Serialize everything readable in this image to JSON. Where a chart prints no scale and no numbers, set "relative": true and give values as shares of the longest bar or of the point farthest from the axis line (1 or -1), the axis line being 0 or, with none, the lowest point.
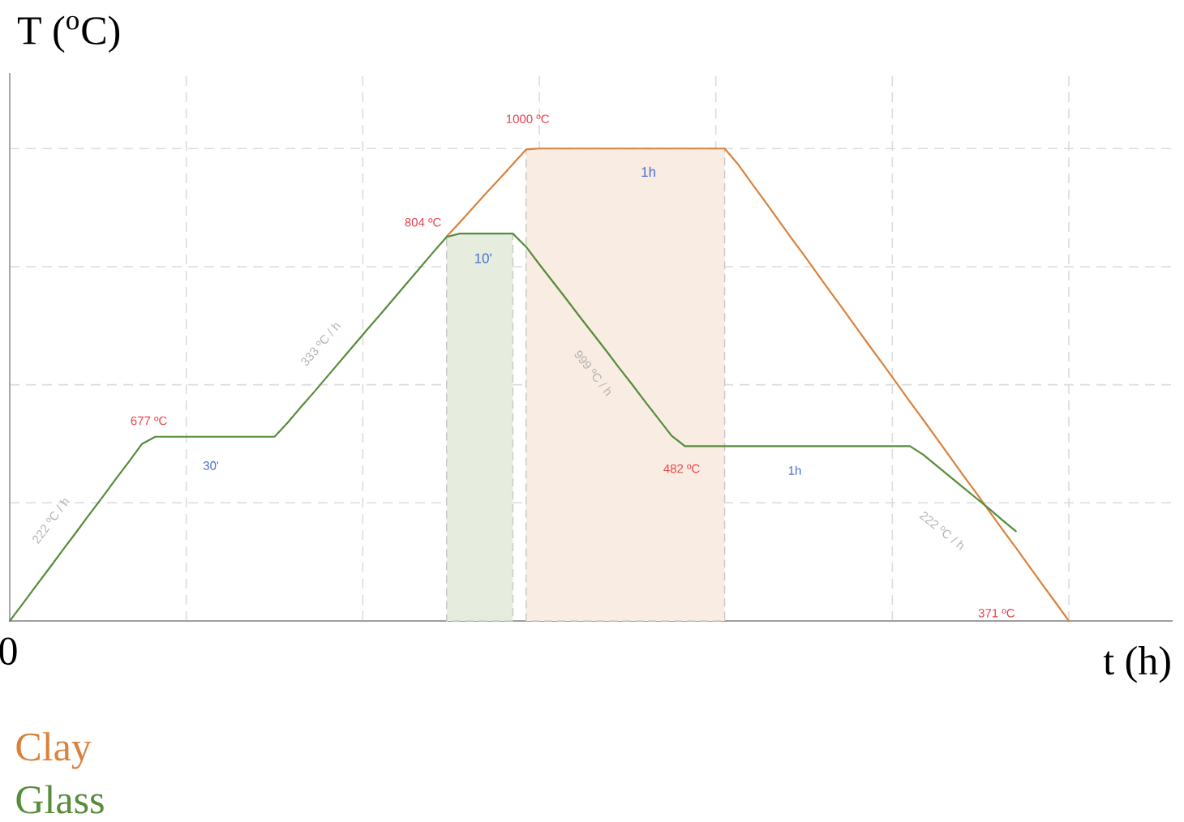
{
  "chart_data": {
    "type": "line",
    "relative": true,
    "ylabel": "T ($^{o}$C)",
    "xlabel": "t (h)",
    "grid": true,
    "categories": [
      null,
      null,
      null,
      null,
      null,
      null,
      null,
      null,
      null,
      null,
      null,
      null,
      null,
      null,
      null,
      null,
      null,
      null,
      null,
      null,
      null,
      null,
      null,
      null,
      null,
      null,
      null,
      null,
      null,
      null,
      null,
      null,
      null,
      null,
      null,
      null,
      null,
      null,
      null,
      null,
      null,
      null,
      null,
      null,
      null,
      null,
      null,
      null,
      null,
      null,
      null,
      null,
      null,
      null,
      null,
      null,
      null,
      null,
      null,
      null,
      null,
      null,
      null,
      null,
      null,
      null,
      null,
      null,
      null,
      null,
      null,
      null,
      null,
      null,
      null,
      null,
      null,
      null,
      null,
      null,
      null
    ],
    "series": [
      {
        "type": "area",
        "color": "#e6eddf",
        "values": [
          null,
          null,
          null,
          null,
          null,
          null,
          null,
          null,
          null,
          null,
          null,
          null,
          null,
          null,
          null,
          null,
          null,
          null,
          null,
          null,
          null,
          null,
          null,
          null,
          null,
          null,
          null,
          null,
          null,
          null,
          null,
          null,
          null,
          0.813,
          0.82,
          0.82,
          0.82,
          0.82,
          0.82,
          null,
          null,
          null,
          null,
          null,
          null,
          null,
          null,
          null,
          null,
          null,
          null,
          null,
          null,
          null,
          null,
          null,
          null,
          null,
          null,
          null,
          null,
          null,
          null,
          null,
          null,
          null,
          null,
          null,
          null,
          null,
          null,
          null,
          null,
          null,
          null,
          null,
          null,
          null,
          null,
          null,
          null
        ]
      },
      {
        "type": "area",
        "color": "#f9ece2",
        "values": [
          null,
          null,
          null,
          null,
          null,
          null,
          null,
          null,
          null,
          null,
          null,
          null,
          null,
          null,
          null,
          null,
          null,
          null,
          null,
          null,
          null,
          null,
          null,
          null,
          null,
          null,
          null,
          null,
          null,
          null,
          null,
          null,
          null,
          null,
          null,
          null,
          null,
          null,
          null,
          0.998,
          1,
          1,
          1,
          1,
          1,
          1,
          1,
          1,
          1,
          1,
          1,
          1,
          1,
          1,
          1,
          null,
          null,
          null,
          null,
          null,
          null,
          null,
          null,
          null,
          null,
          null,
          null,
          null,
          null,
          null,
          null,
          null,
          null,
          null,
          null,
          null,
          null,
          null,
          null,
          null,
          null
        ]
      },
      {
        "name": "Clay",
        "color": "#d9823c",
        "values": [
          null,
          null,
          null,
          null,
          null,
          null,
          null,
          null,
          null,
          null,
          null,
          null,
          null,
          null,
          null,
          null,
          null,
          null,
          null,
          null,
          null,
          null,
          null,
          null,
          null,
          null,
          null,
          null,
          null,
          null,
          null,
          null,
          null,
          0.814,
          0.844,
          0.875,
          0.906,
          0.936,
          0.967,
          0.998,
          1,
          1,
          1,
          1,
          1,
          1,
          1,
          1,
          1,
          1,
          1,
          1,
          1,
          1,
          1,
          0.967,
          0.928,
          0.89,
          0.851,
          0.812,
          0.774,
          0.735,
          0.696,
          0.658,
          0.619,
          0.58,
          0.542,
          0.503,
          0.464,
          0.426,
          0.387,
          0.348,
          0.309,
          0.271,
          0.232,
          0.193,
          0.155,
          0.116,
          0.077,
          0.039,
          0
        ]
      },
      {
        "name": "Glass",
        "color": "#568c3c",
        "values": [
          0,
          0.037,
          0.075,
          0.112,
          0.15,
          0.187,
          0.225,
          0.262,
          0.3,
          0.337,
          0.375,
          0.39,
          0.39,
          0.39,
          0.39,
          0.39,
          0.39,
          0.39,
          0.39,
          0.39,
          0.39,
          0.42,
          0.453,
          0.485,
          0.518,
          0.551,
          0.584,
          0.617,
          0.649,
          0.682,
          0.715,
          0.748,
          0.781,
          0.813,
          0.82,
          0.82,
          0.82,
          0.82,
          0.82,
          0.792,
          0.755,
          0.719,
          0.683,
          0.646,
          0.61,
          0.574,
          0.537,
          0.501,
          0.464,
          0.428,
          0.392,
          0.37,
          0.37,
          0.37,
          0.37,
          0.37,
          0.37,
          0.37,
          0.37,
          0.37,
          0.37,
          0.37,
          0.37,
          0.37,
          0.37,
          0.37,
          0.37,
          0.37,
          0.37,
          0.352,
          0.329,
          0.306,
          0.283,
          0.26,
          0.237,
          0.213,
          0.19,
          null,
          null,
          null,
          null
        ]
      }
    ],
    "annotations": [
      "677 ºC",
      "804 ºC",
      "1000 ºC",
      "482 ºC",
      "371 ºC",
      "222 ºC / h",
      "30'",
      "333 ºC / h",
      "999 ºC / h",
      "1h",
      "222 ºC / h",
      "10'",
      "1h",
      "0"
    ]
  }
}
